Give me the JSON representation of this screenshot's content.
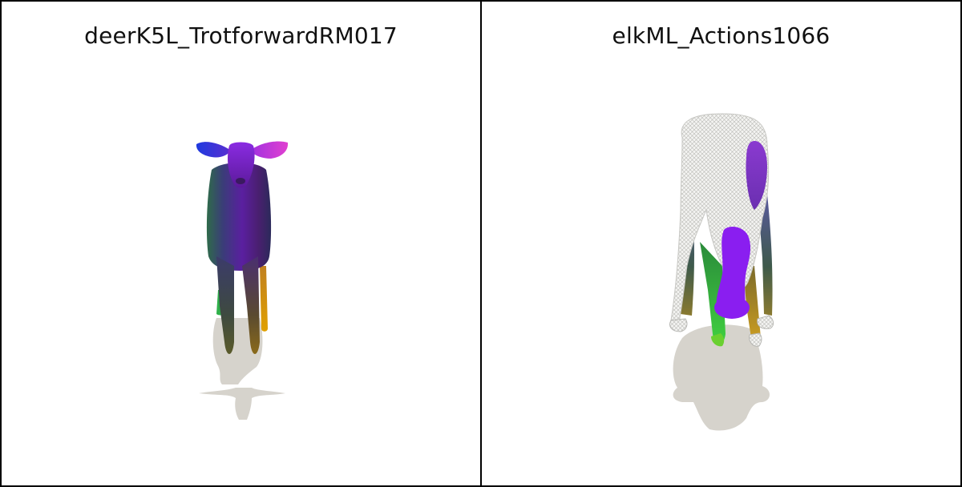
{
  "panels": [
    {
      "title": "deerK5L_TrotforwardRM017"
    },
    {
      "title": "elkML_Actions1066"
    }
  ]
}
